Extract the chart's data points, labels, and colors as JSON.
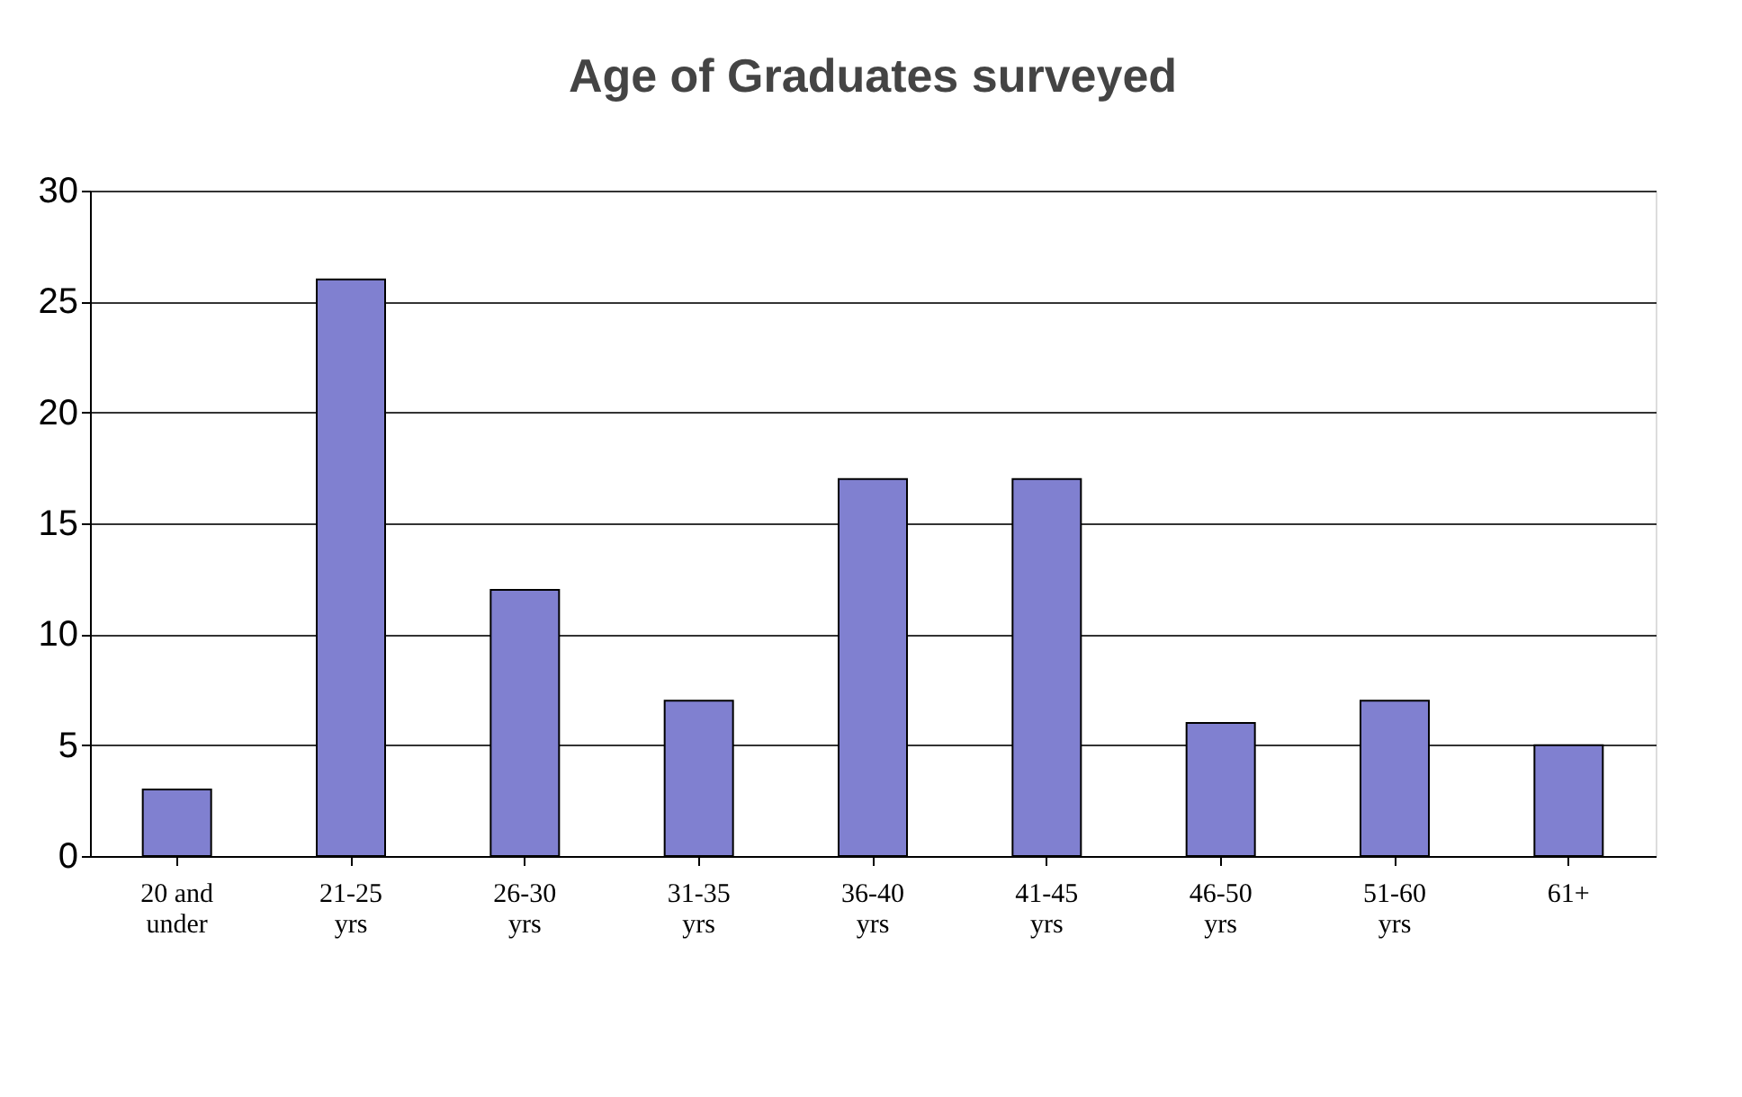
{
  "chart_data": {
    "type": "bar",
    "title": "Age of Graduates surveyed",
    "categories": [
      "20 and under",
      "21-25 yrs",
      "26-30 yrs",
      "31-35 yrs",
      "36-40 yrs",
      "41-45 yrs",
      "46-50 yrs",
      "51-60 yrs",
      "61+"
    ],
    "values": [
      3,
      26,
      12,
      7,
      17,
      17,
      6,
      7,
      5
    ],
    "color": "#8080d0",
    "ylim": [
      0,
      30
    ],
    "yticks": [
      0,
      5,
      10,
      15,
      20,
      25,
      30
    ],
    "grid": "y"
  }
}
